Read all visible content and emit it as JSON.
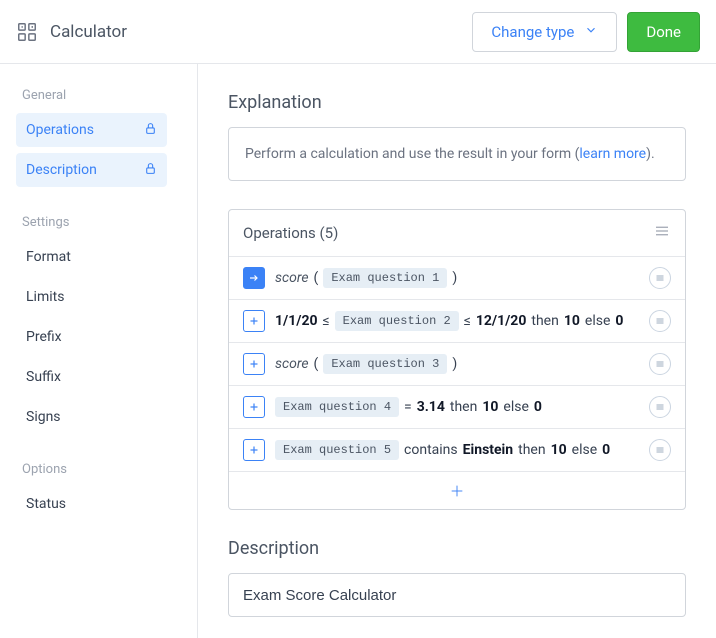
{
  "header": {
    "title": "Calculator",
    "change_type_label": "Change type",
    "done_label": "Done"
  },
  "sidebar": {
    "groups": [
      {
        "label": "General",
        "items": [
          {
            "label": "Operations",
            "active": true,
            "locked": true
          },
          {
            "label": "Description",
            "active": true,
            "locked": true
          }
        ]
      },
      {
        "label": "Settings",
        "items": [
          {
            "label": "Format"
          },
          {
            "label": "Limits"
          },
          {
            "label": "Prefix"
          },
          {
            "label": "Suffix"
          },
          {
            "label": "Signs"
          }
        ]
      },
      {
        "label": "Options",
        "items": [
          {
            "label": "Status"
          }
        ]
      }
    ]
  },
  "explanation": {
    "title": "Explanation",
    "text_pre": "Perform a calculation and use the result in your form (",
    "link_text": "learn more",
    "text_post": ")."
  },
  "operations": {
    "header_label": "Operations",
    "count": 5,
    "rows": [
      {
        "icon": "arrow",
        "parts": [
          {
            "t": "italic",
            "v": "score"
          },
          {
            "t": "text",
            "v": "("
          },
          {
            "t": "chip",
            "v": "Exam question 1"
          },
          {
            "t": "text",
            "v": ")"
          }
        ]
      },
      {
        "icon": "plus",
        "parts": [
          {
            "t": "bold",
            "v": "1/1/20"
          },
          {
            "t": "text",
            "v": "≤"
          },
          {
            "t": "chip",
            "v": "Exam question 2"
          },
          {
            "t": "text",
            "v": "≤"
          },
          {
            "t": "bold",
            "v": "12/1/20"
          },
          {
            "t": "text",
            "v": " then "
          },
          {
            "t": "bold",
            "v": "10"
          },
          {
            "t": "text",
            "v": " else "
          },
          {
            "t": "bold",
            "v": "0"
          }
        ]
      },
      {
        "icon": "plus",
        "parts": [
          {
            "t": "italic",
            "v": "score"
          },
          {
            "t": "text",
            "v": "("
          },
          {
            "t": "chip",
            "v": "Exam question 3"
          },
          {
            "t": "text",
            "v": ")"
          }
        ]
      },
      {
        "icon": "plus",
        "parts": [
          {
            "t": "chip",
            "v": "Exam question 4"
          },
          {
            "t": "text",
            "v": " = "
          },
          {
            "t": "bold",
            "v": "3.14"
          },
          {
            "t": "text",
            "v": " then "
          },
          {
            "t": "bold",
            "v": "10"
          },
          {
            "t": "text",
            "v": " else "
          },
          {
            "t": "bold",
            "v": "0"
          }
        ]
      },
      {
        "icon": "plus",
        "parts": [
          {
            "t": "chip",
            "v": "Exam question 5"
          },
          {
            "t": "text",
            "v": " contains "
          },
          {
            "t": "bold",
            "v": "Einstein"
          },
          {
            "t": "text",
            "v": " then "
          },
          {
            "t": "bold",
            "v": "10"
          },
          {
            "t": "text",
            "v": " else "
          },
          {
            "t": "bold",
            "v": "0"
          }
        ]
      }
    ]
  },
  "description": {
    "title": "Description",
    "value": "Exam Score Calculator"
  },
  "colors": {
    "accent": "#3b82f6",
    "green": "#3ebb40",
    "border": "#d1d5db",
    "chip_bg": "#e6eef5",
    "side_active_bg": "#eaf3fd"
  }
}
